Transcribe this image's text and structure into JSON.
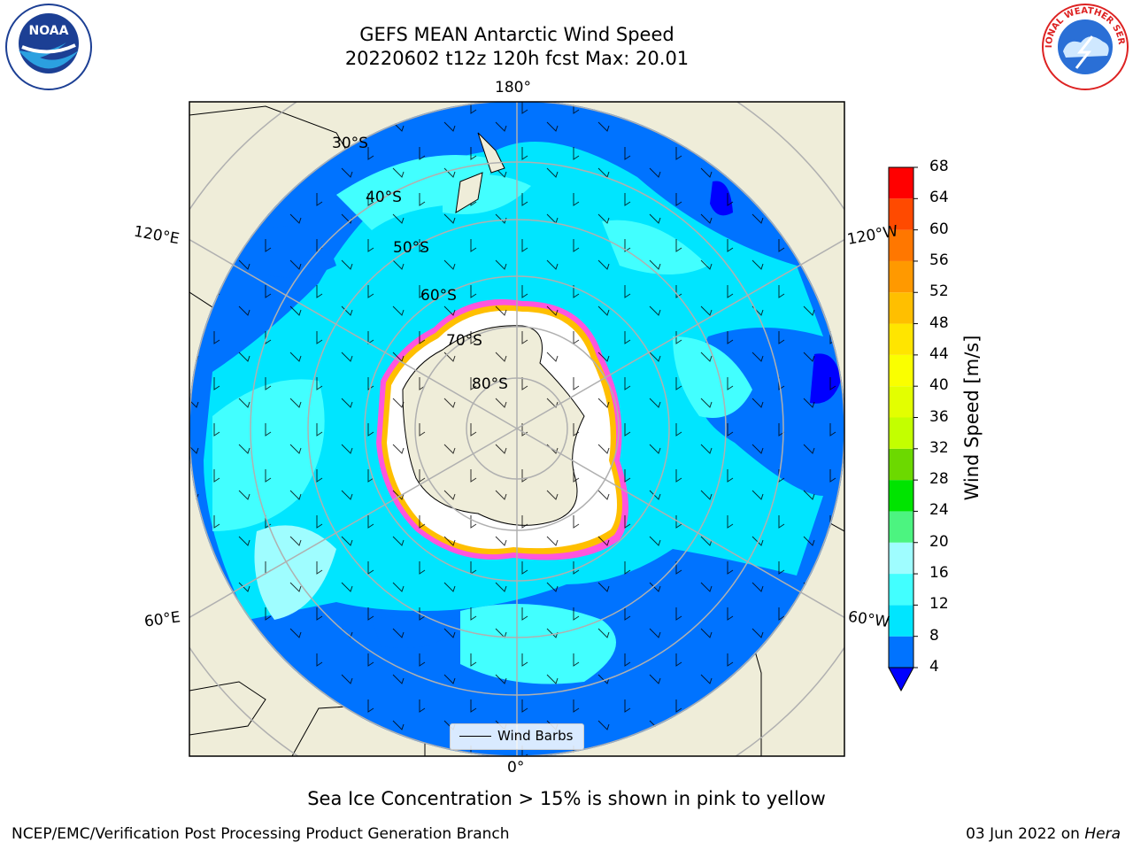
{
  "title_line1": "GEFS MEAN Antarctic Wind Speed",
  "title_line2": "20220602 t12z 120h fcst   Max: 20.01",
  "longitude_labels": {
    "top": "180°",
    "bottom": "0°",
    "upper_left": "120°E",
    "upper_right": "120°W",
    "lower_left": "60°E",
    "lower_right": "60°W"
  },
  "latitude_labels": [
    "30°S",
    "40°S",
    "50°S",
    "60°S",
    "70°S",
    "80°S"
  ],
  "legend": {
    "label": "Wind Barbs"
  },
  "colorbar": {
    "title": "Wind Speed [m/s]",
    "ticks": [
      "4",
      "8",
      "12",
      "16",
      "20",
      "24",
      "28",
      "32",
      "36",
      "40",
      "44",
      "48",
      "52",
      "56",
      "60",
      "64",
      "68"
    ],
    "colors": [
      "#0073ff",
      "#00e5ff",
      "#42ffff",
      "#9ffdff",
      "#4cf480",
      "#00e400",
      "#6cd900",
      "#c3ff00",
      "#e3ff00",
      "#faff00",
      "#ffe500",
      "#ffbf00",
      "#ff9900",
      "#ff7700",
      "#ff4a00",
      "#ff0000"
    ],
    "under_color": "#0000ff"
  },
  "note": "Sea Ice Concentration > 15% is shown in pink to yellow",
  "footer_left": "NCEP/EMC/Verification Post Processing Product Generation Branch",
  "footer_right_date": "03 Jun 2022 on",
  "footer_right_host": "Hera",
  "logos": {
    "left": "NOAA",
    "right": "NATIONAL WEATHER SERVICE"
  }
}
